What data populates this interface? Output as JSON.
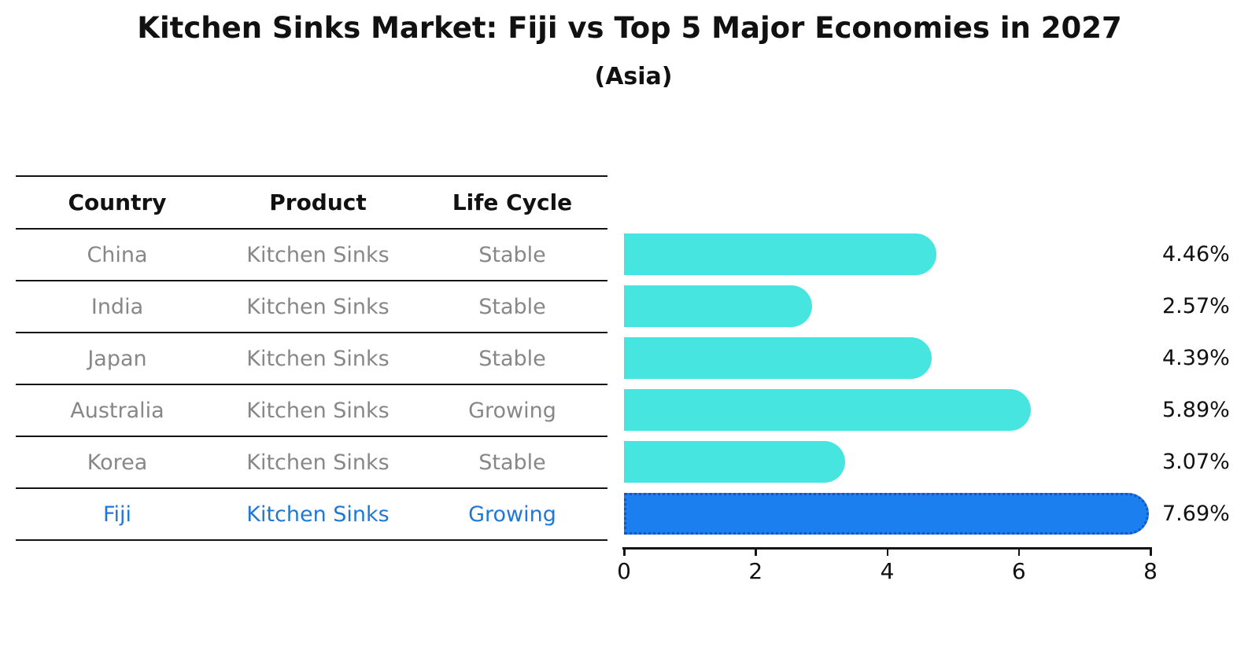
{
  "title": "Kitchen Sinks Market: Fiji vs Top 5 Major Economies in 2027",
  "subtitle": "(Asia)",
  "colors": {
    "bar_default": "#46e5e0",
    "bar_highlight": "#1b7ff0",
    "bar_highlight_edge": "#1355c5",
    "highlight_text": "#1f78d8",
    "row_text": "#878787",
    "heading_text": "#111111",
    "line_color": "#141414"
  },
  "table": {
    "headers": [
      "Country",
      "Product",
      "Life Cycle"
    ],
    "rows": [
      {
        "country": "China",
        "product": "Kitchen Sinks",
        "life_cycle": "Stable",
        "highlight": false
      },
      {
        "country": "India",
        "product": "Kitchen Sinks",
        "life_cycle": "Stable",
        "highlight": false
      },
      {
        "country": "Japan",
        "product": "Kitchen Sinks",
        "life_cycle": "Stable",
        "highlight": false
      },
      {
        "country": "Australia",
        "product": "Kitchen Sinks",
        "life_cycle": "Growing",
        "highlight": false
      },
      {
        "country": "Korea",
        "product": "Kitchen Sinks",
        "life_cycle": "Stable",
        "highlight": false
      },
      {
        "country": "Fiji",
        "product": "Kitchen Sinks",
        "life_cycle": "Growing",
        "highlight": true
      }
    ]
  },
  "chart_data": {
    "type": "bar",
    "orientation": "horizontal",
    "title": "Kitchen Sinks Market: Fiji vs Top 5 Major Economies in 2027",
    "subtitle": "(Asia)",
    "categories": [
      "China",
      "India",
      "Japan",
      "Australia",
      "Korea",
      "Fiji"
    ],
    "values": [
      4.46,
      2.57,
      4.39,
      5.89,
      3.07,
      7.69
    ],
    "labels": [
      "4.46%",
      "2.57%",
      "4.39%",
      "5.89%",
      "3.07%",
      "7.69%"
    ],
    "unit": "%",
    "xlim": [
      0,
      8
    ],
    "xticks": [
      0,
      2,
      4,
      6,
      8
    ],
    "highlight_index": 5,
    "grid": false,
    "legend": false
  }
}
